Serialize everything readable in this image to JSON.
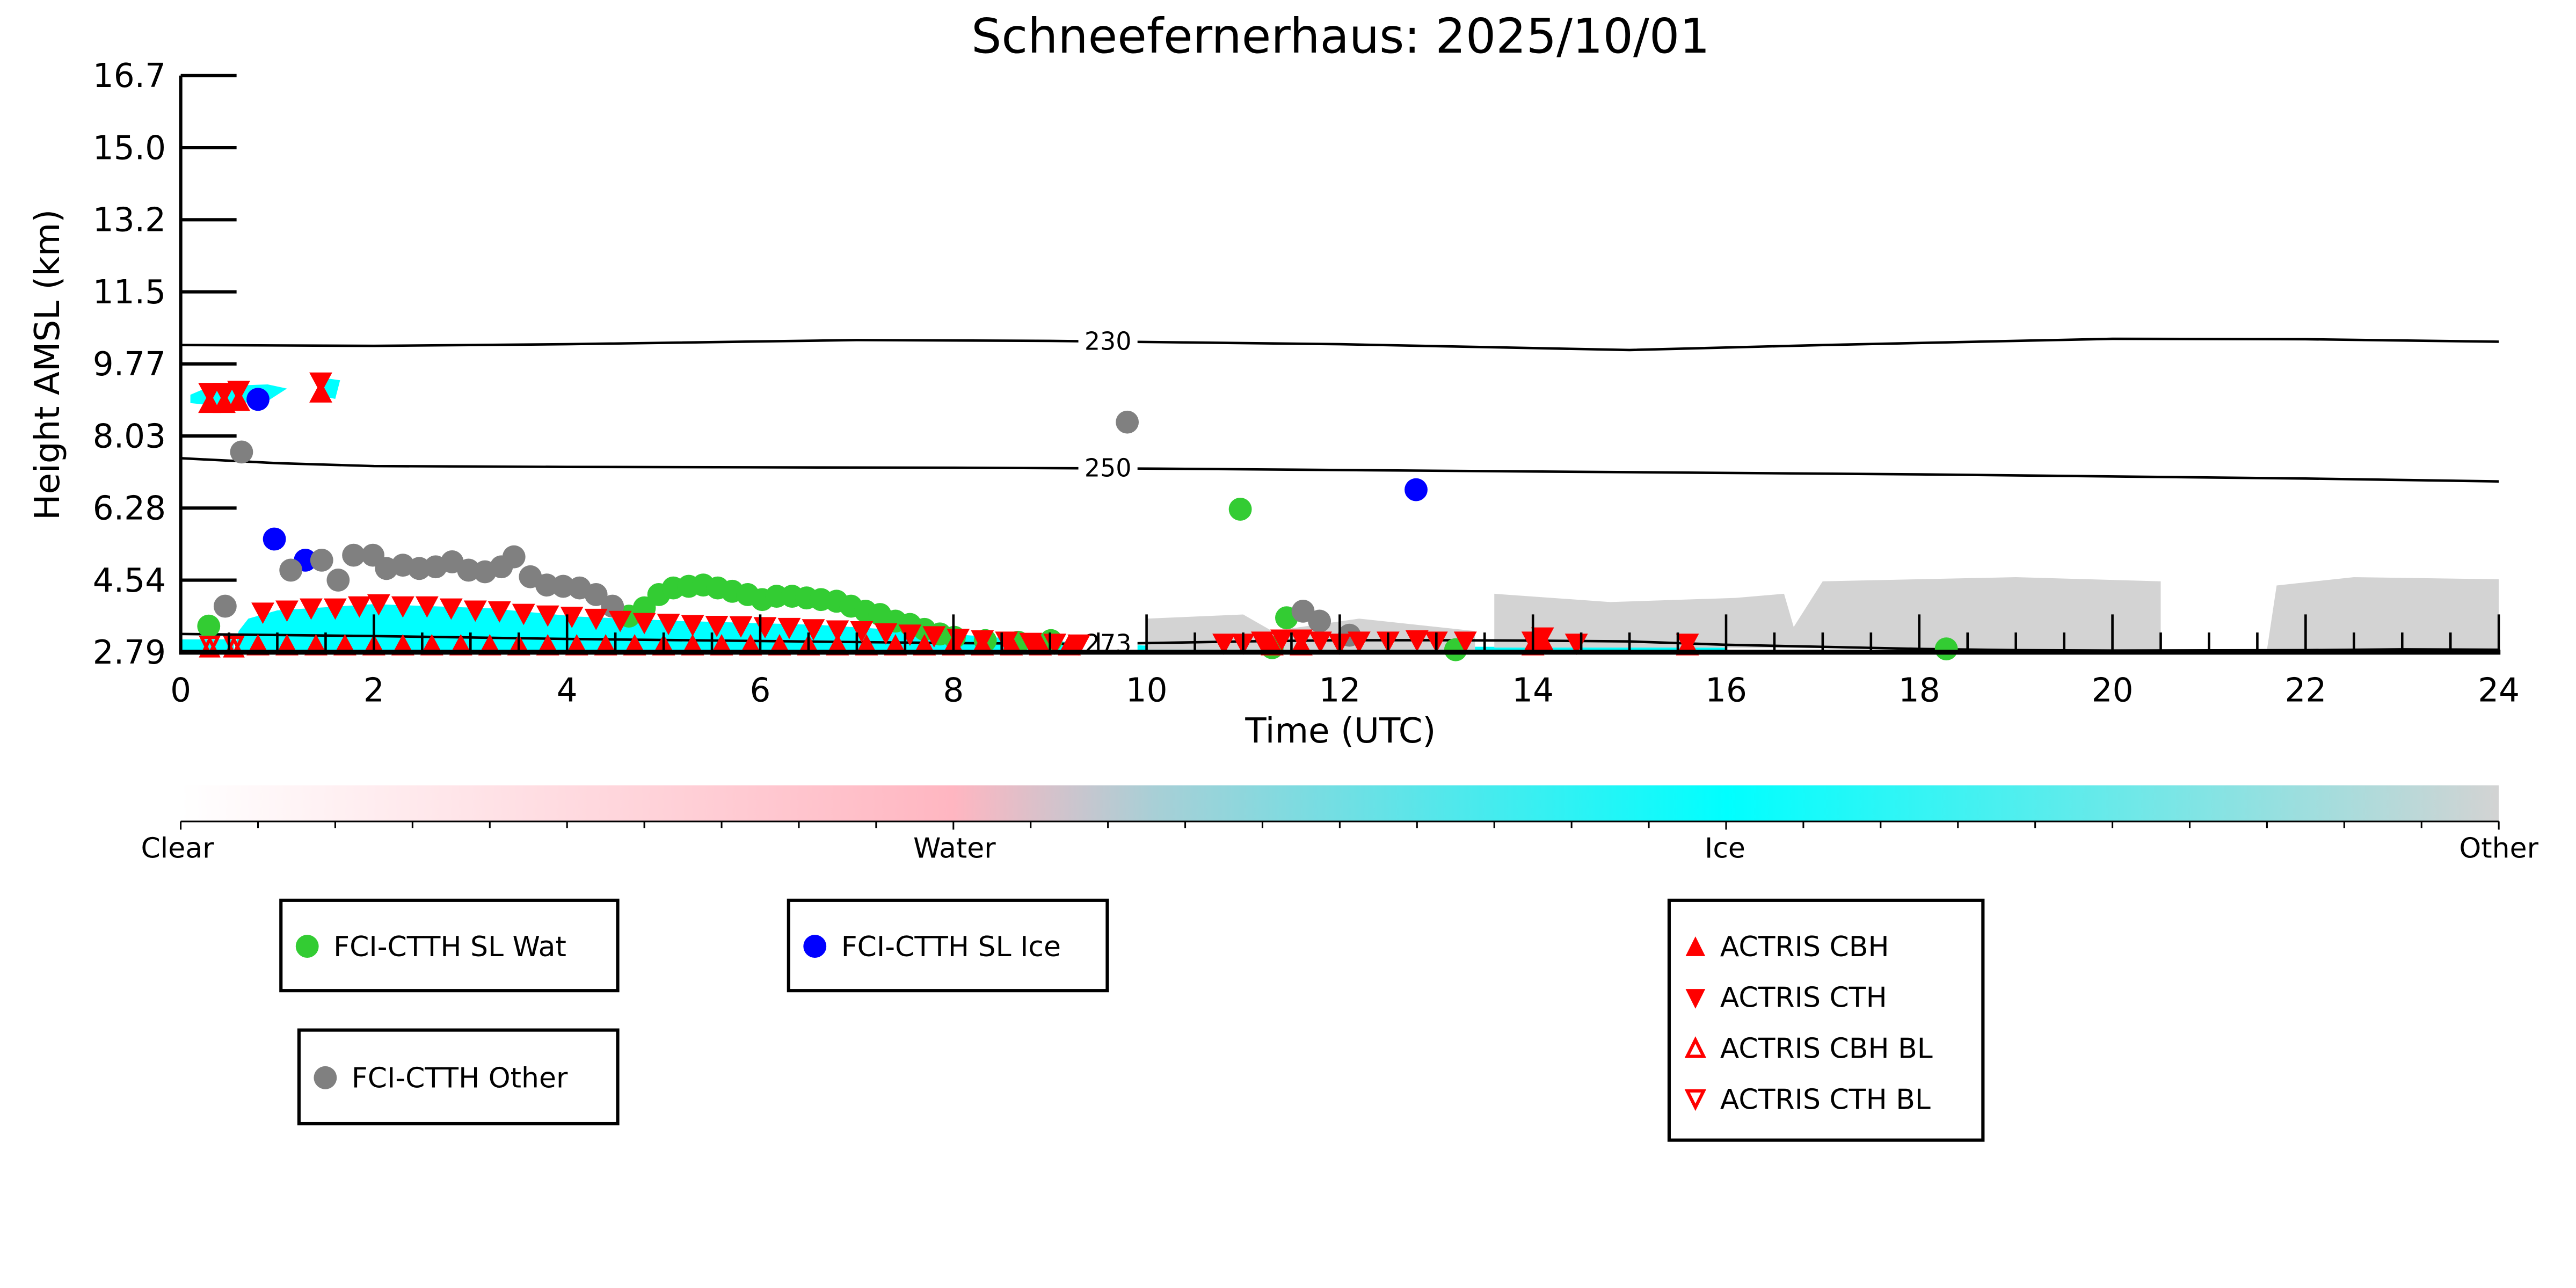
{
  "chart_data": {
    "type": "scatter",
    "title": "Schneefernerhaus: 2025/10/01",
    "xlabel": "Time (UTC)",
    "ylabel": "Height AMSL (km)",
    "xlim": [
      0,
      24
    ],
    "ylim": [
      2.79,
      16.7
    ],
    "xticks": [
      "0",
      "2",
      "4",
      "6",
      "8",
      "10",
      "12",
      "14",
      "16",
      "18",
      "20",
      "22",
      "24"
    ],
    "yticks": [
      "2.79",
      "4.54",
      "6.28",
      "8.03",
      "9.77",
      "11.5",
      "13.2",
      "15.0",
      "16.7"
    ],
    "colorbar": {
      "labels": [
        "Clear",
        "Water",
        "Ice",
        "Other"
      ],
      "colors": {
        "clear": "#ffffff",
        "water": "#ffb6c1",
        "ice": "#00ffff",
        "other": "#d3d3d3"
      }
    },
    "fill_regions": [
      {
        "name": "Ice",
        "color": "#00ffff",
        "points": [
          [
            0.55,
            2.79
          ],
          [
            0.6,
            3.3
          ],
          [
            0.7,
            3.6
          ],
          [
            1.0,
            3.8
          ],
          [
            2.0,
            3.95
          ],
          [
            3.2,
            3.85
          ],
          [
            4.1,
            3.65
          ],
          [
            5.1,
            3.55
          ],
          [
            6.6,
            3.45
          ],
          [
            7.6,
            3.3
          ],
          [
            8.7,
            3.1
          ],
          [
            9.5,
            3.0
          ],
          [
            10,
            2.95
          ],
          [
            16,
            2.9
          ],
          [
            16,
            2.79
          ]
        ]
      },
      {
        "name": "Ice",
        "color": "#00ffff",
        "points": [
          [
            0.0,
            2.79
          ],
          [
            0.0,
            3.1
          ],
          [
            0.55,
            3.1
          ],
          [
            0.55,
            2.79
          ]
        ]
      },
      {
        "name": "Ice",
        "color": "#00ffff",
        "points": [
          [
            0.1,
            9.0
          ],
          [
            0.3,
            9.2
          ],
          [
            0.9,
            9.25
          ],
          [
            1.1,
            9.15
          ],
          [
            0.9,
            8.85
          ],
          [
            0.3,
            8.75
          ],
          [
            0.1,
            8.8
          ]
        ]
      },
      {
        "name": "Ice",
        "color": "#00ffff",
        "points": [
          [
            1.4,
            9.0
          ],
          [
            1.5,
            9.4
          ],
          [
            1.65,
            9.35
          ],
          [
            1.6,
            8.9
          ]
        ]
      },
      {
        "name": "Other",
        "color": "#d3d3d3",
        "points": [
          [
            10.0,
            2.85
          ],
          [
            10.0,
            3.6
          ],
          [
            11.0,
            3.7
          ],
          [
            11.3,
            3.3
          ],
          [
            12.2,
            3.6
          ],
          [
            13.4,
            3.3
          ],
          [
            13.4,
            2.85
          ]
        ]
      },
      {
        "name": "Other",
        "color": "#d3d3d3",
        "points": [
          [
            13.6,
            2.9
          ],
          [
            13.6,
            4.2
          ],
          [
            14.8,
            4.0
          ],
          [
            16.1,
            4.1
          ],
          [
            16.6,
            4.2
          ],
          [
            16.7,
            3.4
          ],
          [
            17.0,
            4.5
          ],
          [
            19.0,
            4.6
          ],
          [
            20.5,
            4.5
          ],
          [
            20.5,
            2.85
          ],
          [
            16,
            2.9
          ]
        ]
      },
      {
        "name": "Other",
        "color": "#d3d3d3",
        "points": [
          [
            21.6,
            2.85
          ],
          [
            21.7,
            4.4
          ],
          [
            22.5,
            4.6
          ],
          [
            24,
            4.55
          ],
          [
            24,
            2.85
          ]
        ]
      }
    ],
    "contours": [
      {
        "label": "230",
        "label_x": 9.6,
        "x": [
          0,
          2,
          4,
          7,
          9,
          12,
          15,
          17,
          20,
          22,
          24
        ],
        "y": [
          10.2,
          10.18,
          10.22,
          10.32,
          10.3,
          10.22,
          10.08,
          10.2,
          10.35,
          10.34,
          10.28
        ]
      },
      {
        "label": "250",
        "label_x": 9.6,
        "x": [
          0,
          1,
          2,
          4,
          8,
          10,
          14,
          18,
          22,
          24
        ],
        "y": [
          7.47,
          7.35,
          7.28,
          7.26,
          7.24,
          7.22,
          7.15,
          7.08,
          6.98,
          6.91
        ]
      },
      {
        "label": "273",
        "label_x": 9.6,
        "x": [
          0,
          2,
          4,
          6,
          8,
          9.5,
          11,
          12,
          13,
          14,
          15,
          16,
          17,
          18,
          19,
          20,
          22,
          23,
          24
        ],
        "y": [
          3.23,
          3.18,
          3.11,
          3.06,
          3.01,
          2.99,
          3.05,
          3.08,
          3.08,
          3.07,
          3.05,
          2.97,
          2.92,
          2.87,
          2.84,
          2.83,
          2.84,
          2.86,
          2.85
        ]
      }
    ],
    "series": [
      {
        "name": "FCI-CTTH SL Wat",
        "marker": "circle",
        "color": "#33cc33",
        "points": [
          [
            0.29,
            3.42
          ],
          [
            4.64,
            3.66
          ],
          [
            4.8,
            3.86
          ],
          [
            4.95,
            4.18
          ],
          [
            5.1,
            4.34
          ],
          [
            5.26,
            4.38
          ],
          [
            5.41,
            4.41
          ],
          [
            5.56,
            4.34
          ],
          [
            5.71,
            4.26
          ],
          [
            5.87,
            4.18
          ],
          [
            6.02,
            4.06
          ],
          [
            6.17,
            4.14
          ],
          [
            6.33,
            4.14
          ],
          [
            6.48,
            4.1
          ],
          [
            6.63,
            4.06
          ],
          [
            6.79,
            4.02
          ],
          [
            6.94,
            3.9
          ],
          [
            7.09,
            3.78
          ],
          [
            7.24,
            3.7
          ],
          [
            7.4,
            3.54
          ],
          [
            7.55,
            3.46
          ],
          [
            7.7,
            3.34
          ],
          [
            7.86,
            3.23
          ],
          [
            8.01,
            3.15
          ],
          [
            8.33,
            3.07
          ],
          [
            8.67,
            3.03
          ],
          [
            9.01,
            3.07
          ],
          [
            10.97,
            6.24
          ],
          [
            11.45,
            3.62
          ],
          [
            11.3,
            2.9
          ],
          [
            13.2,
            2.85
          ],
          [
            18.28,
            2.87
          ]
        ]
      },
      {
        "name": "FCI-CTTH SL Ice",
        "marker": "circle",
        "color": "#0000ff",
        "points": [
          [
            0.8,
            8.89
          ],
          [
            0.97,
            5.52
          ],
          [
            1.29,
            5.01
          ],
          [
            12.79,
            6.71
          ]
        ]
      },
      {
        "name": "FCI-CTTH Other",
        "marker": "circle",
        "color": "#808080",
        "points": [
          [
            0.46,
            3.9
          ],
          [
            0.63,
            7.62
          ],
          [
            1.14,
            4.77
          ],
          [
            1.46,
            5.01
          ],
          [
            1.63,
            4.53
          ],
          [
            1.79,
            5.13
          ],
          [
            1.99,
            5.13
          ],
          [
            2.13,
            4.81
          ],
          [
            2.3,
            4.89
          ],
          [
            2.47,
            4.81
          ],
          [
            2.64,
            4.85
          ],
          [
            2.81,
            4.97
          ],
          [
            2.98,
            4.77
          ],
          [
            3.15,
            4.73
          ],
          [
            3.32,
            4.85
          ],
          [
            3.45,
            5.09
          ],
          [
            3.62,
            4.61
          ],
          [
            3.79,
            4.41
          ],
          [
            3.96,
            4.38
          ],
          [
            4.13,
            4.34
          ],
          [
            4.3,
            4.18
          ],
          [
            4.47,
            3.9
          ],
          [
            9.8,
            8.34
          ],
          [
            11.62,
            3.78
          ],
          [
            11.79,
            3.54
          ],
          [
            12.1,
            3.2
          ]
        ]
      },
      {
        "name": "ACTRIS CBH",
        "marker": "triangle-up",
        "color": "#ff0000",
        "points": [
          [
            0.3,
            8.8
          ],
          [
            0.45,
            8.8
          ],
          [
            0.6,
            8.85
          ],
          [
            1.45,
            9.05
          ],
          [
            0.8,
            2.95
          ],
          [
            1.1,
            2.95
          ],
          [
            1.4,
            2.95
          ],
          [
            1.7,
            2.95
          ],
          [
            2.0,
            2.95
          ],
          [
            2.3,
            2.95
          ],
          [
            2.6,
            2.95
          ],
          [
            2.9,
            2.95
          ],
          [
            3.2,
            2.95
          ],
          [
            3.5,
            2.95
          ],
          [
            3.8,
            2.95
          ],
          [
            4.1,
            2.95
          ],
          [
            4.4,
            2.95
          ],
          [
            4.7,
            2.95
          ],
          [
            5.0,
            2.95
          ],
          [
            5.3,
            2.95
          ],
          [
            5.6,
            2.95
          ],
          [
            5.9,
            2.95
          ],
          [
            6.2,
            2.95
          ],
          [
            6.5,
            2.95
          ],
          [
            6.8,
            2.95
          ],
          [
            7.1,
            2.95
          ],
          [
            7.4,
            2.95
          ],
          [
            7.7,
            2.95
          ],
          [
            8.0,
            2.95
          ],
          [
            8.3,
            2.95
          ],
          [
            8.6,
            2.95
          ],
          [
            8.9,
            2.95
          ],
          [
            9.2,
            2.95
          ],
          [
            11.3,
            2.95
          ],
          [
            11.6,
            2.95
          ],
          [
            14.0,
            2.95
          ],
          [
            14.1,
            3.05
          ],
          [
            15.6,
            2.95
          ]
        ]
      },
      {
        "name": "ACTRIS CTH",
        "marker": "triangle-down",
        "color": "#ff0000",
        "points": [
          [
            0.3,
            9.05
          ],
          [
            0.45,
            9.05
          ],
          [
            0.6,
            9.1
          ],
          [
            1.45,
            9.3
          ],
          [
            0.85,
            3.75
          ],
          [
            1.1,
            3.8
          ],
          [
            1.35,
            3.85
          ],
          [
            1.6,
            3.85
          ],
          [
            1.85,
            3.9
          ],
          [
            2.05,
            3.95
          ],
          [
            2.3,
            3.9
          ],
          [
            2.55,
            3.9
          ],
          [
            2.8,
            3.85
          ],
          [
            3.05,
            3.8
          ],
          [
            3.3,
            3.78
          ],
          [
            3.55,
            3.72
          ],
          [
            3.8,
            3.68
          ],
          [
            4.05,
            3.65
          ],
          [
            4.3,
            3.6
          ],
          [
            4.55,
            3.55
          ],
          [
            4.8,
            3.5
          ],
          [
            5.05,
            3.48
          ],
          [
            5.3,
            3.45
          ],
          [
            5.55,
            3.43
          ],
          [
            5.8,
            3.42
          ],
          [
            6.05,
            3.4
          ],
          [
            6.3,
            3.38
          ],
          [
            6.55,
            3.35
          ],
          [
            6.8,
            3.32
          ],
          [
            7.05,
            3.3
          ],
          [
            7.3,
            3.25
          ],
          [
            7.55,
            3.22
          ],
          [
            7.8,
            3.18
          ],
          [
            8.05,
            3.12
          ],
          [
            8.3,
            3.08
          ],
          [
            8.55,
            3.05
          ],
          [
            8.8,
            3.02
          ],
          [
            9.05,
            3.0
          ],
          [
            9.3,
            2.98
          ],
          [
            10.8,
            3.0
          ],
          [
            11.0,
            3.0
          ],
          [
            11.2,
            3.05
          ],
          [
            11.4,
            3.1
          ],
          [
            11.6,
            3.1
          ],
          [
            11.8,
            3.05
          ],
          [
            12.0,
            3.0
          ],
          [
            12.2,
            3.05
          ],
          [
            12.5,
            3.05
          ],
          [
            12.8,
            3.08
          ],
          [
            13.0,
            3.05
          ],
          [
            13.3,
            3.05
          ],
          [
            14.0,
            3.05
          ],
          [
            14.1,
            3.15
          ],
          [
            14.45,
            3.0
          ],
          [
            15.6,
            3.0
          ]
        ]
      },
      {
        "name": "ACTRIS CBH BL",
        "marker": "triangle-up-open",
        "color": "#ff0000",
        "points": [
          [
            0.3,
            2.9
          ],
          [
            0.55,
            2.9
          ]
        ]
      },
      {
        "name": "ACTRIS CTH BL",
        "marker": "triangle-down-open",
        "color": "#ff0000",
        "points": [
          [
            0.3,
            2.95
          ],
          [
            0.55,
            2.95
          ]
        ]
      }
    ]
  },
  "legends": {
    "wat": "FCI-CTTH SL Wat",
    "ice": "FCI-CTTH SL Ice",
    "other": "FCI-CTTH Other",
    "actris": [
      "ACTRIS CBH",
      "ACTRIS CTH",
      "ACTRIS CBH BL",
      "ACTRIS CTH BL"
    ]
  }
}
